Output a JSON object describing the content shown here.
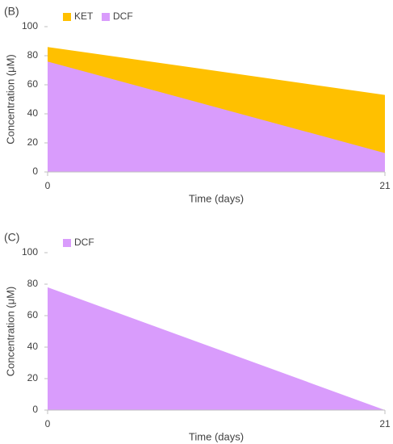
{
  "chart_data": [
    {
      "type": "area",
      "title": "(B)",
      "x_label": "Time (days)",
      "y_label": "Concentration (μM)",
      "x": [
        0,
        21
      ],
      "xlim": [
        0,
        21
      ],
      "xticks": [
        0,
        21
      ],
      "ylim": [
        0,
        100
      ],
      "yticks": [
        0,
        20,
        40,
        60,
        80,
        100
      ],
      "series": [
        {
          "name": "KET",
          "color": "#ffc000",
          "values": [
            86,
            53
          ]
        },
        {
          "name": "DCF",
          "color": "#d99cfc",
          "values": [
            76,
            13
          ]
        }
      ]
    },
    {
      "type": "area",
      "title": "(C)",
      "x_label": "Time (days)",
      "y_label": "Concentration (μM)",
      "x": [
        0,
        21
      ],
      "xlim": [
        0,
        21
      ],
      "xticks": [
        0,
        21
      ],
      "ylim": [
        0,
        100
      ],
      "yticks": [
        0,
        20,
        40,
        60,
        80,
        100
      ],
      "series": [
        {
          "name": "DCF",
          "color": "#d99cfc",
          "values": [
            78,
            0
          ]
        }
      ]
    }
  ]
}
